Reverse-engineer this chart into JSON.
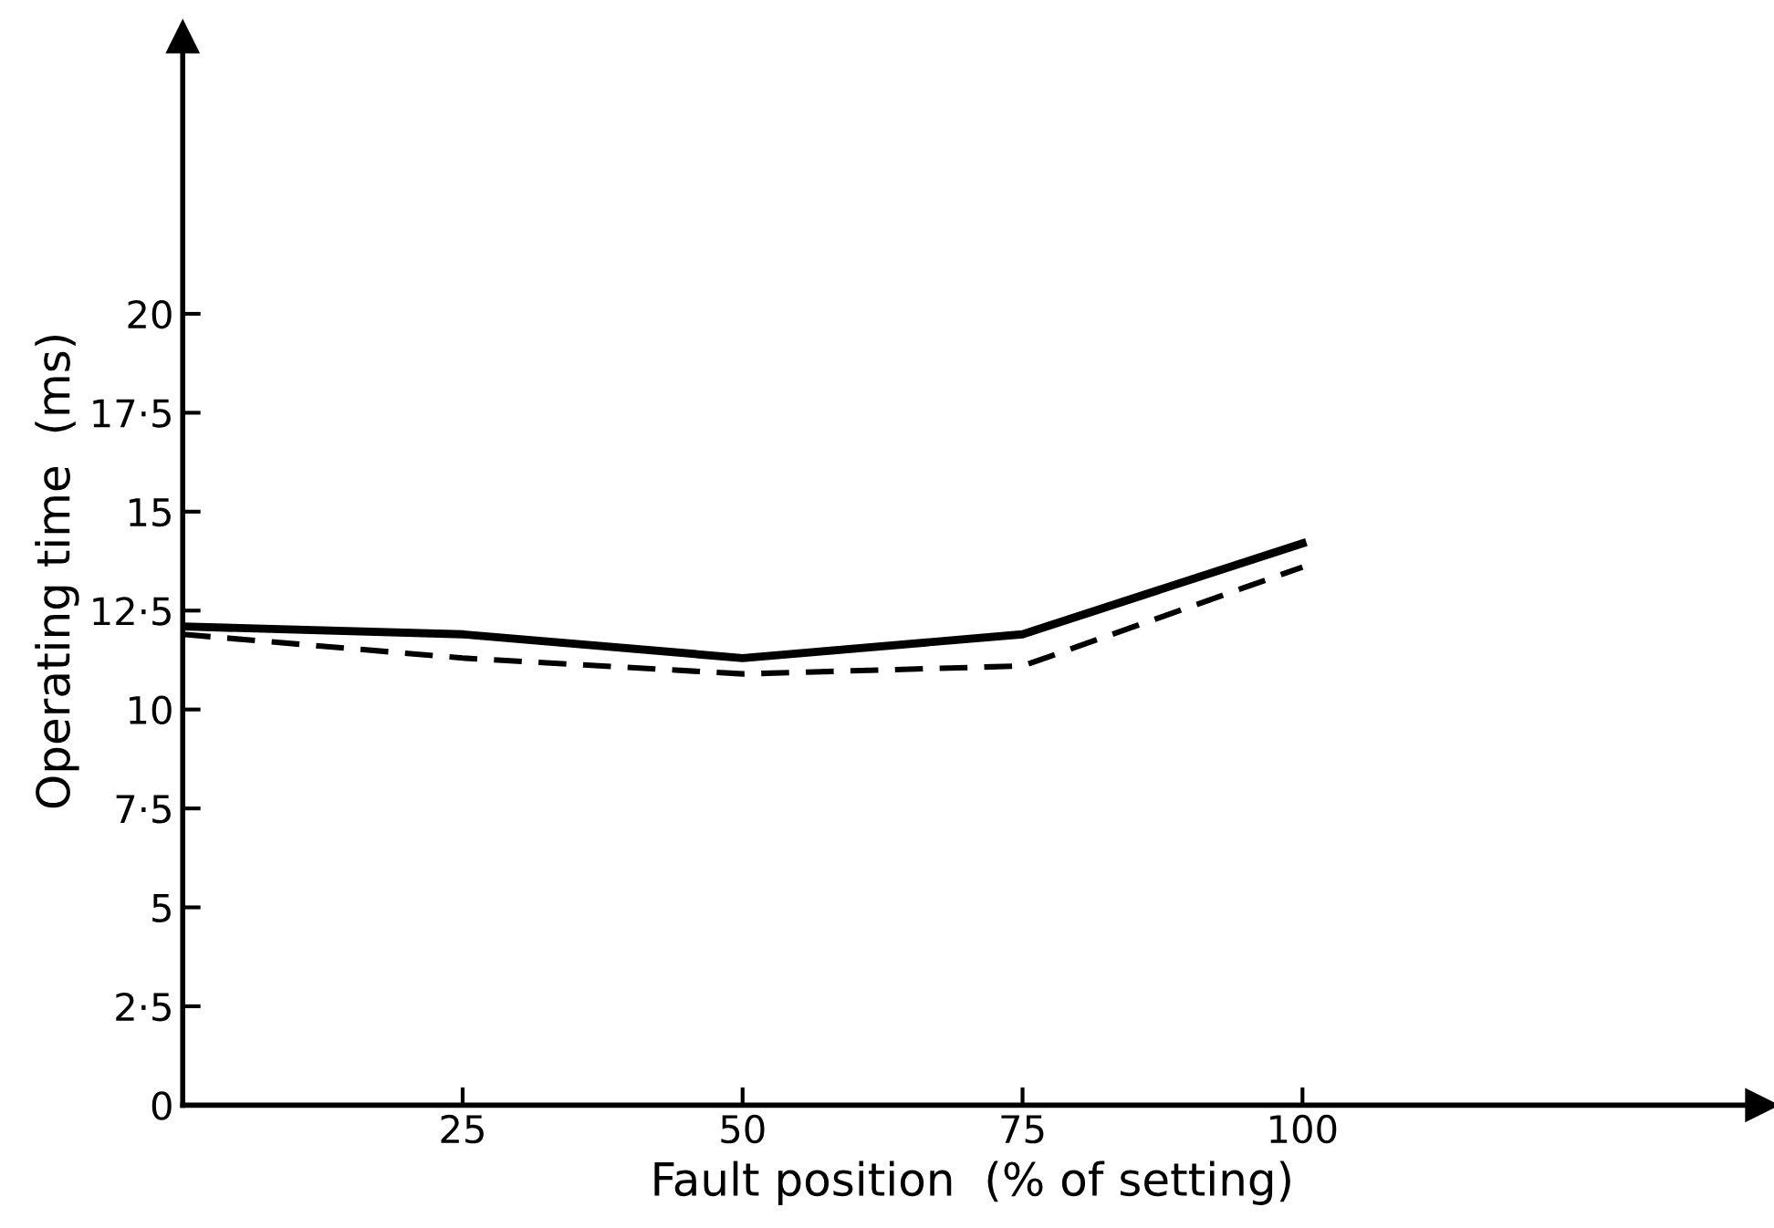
{
  "chart_data": {
    "type": "line",
    "xlabel": "Fault position  (% of setting)",
    "ylabel": "Operating time  (ms)",
    "x": [
      0,
      25,
      50,
      75,
      100
    ],
    "series": [
      {
        "color": "#000000",
        "line_style": "solid",
        "values": [
          12.1,
          11.9,
          11.3,
          11.9,
          14.2
        ]
      },
      {
        "color": "#000000",
        "line_style": "dashed",
        "values": [
          11.9,
          11.3,
          10.9,
          11.1,
          13.6
        ]
      }
    ],
    "xlim": [
      0,
      141
    ],
    "xticks": [
      25,
      50,
      75,
      100
    ],
    "ylim": [
      0,
      27
    ],
    "yticks": [
      0,
      {
        "value": 2.5,
        "label": "2·5"
      },
      5,
      {
        "value": 7.5,
        "label": "7·5"
      },
      10,
      {
        "value": 12.5,
        "label": "12·5"
      },
      15,
      {
        "value": 17.5,
        "label": "17·5"
      },
      20
    ],
    "grid": false,
    "legend": false,
    "marker": "none"
  }
}
